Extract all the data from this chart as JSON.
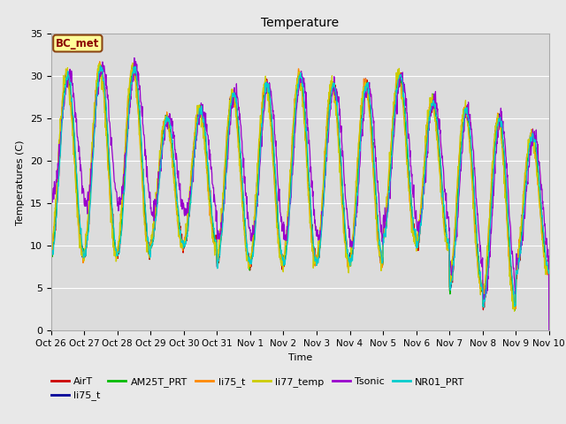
{
  "title": "Temperature",
  "xlabel": "Time",
  "ylabel": "Temperatures (C)",
  "ylim": [
    0,
    35
  ],
  "xlim": [
    0,
    15
  ],
  "fig_bg": "#e8e8e8",
  "plot_bg": "#dcdcdc",
  "annotation_text": "BC_met",
  "annotation_bg": "#ffff99",
  "annotation_edge": "#8B4513",
  "annotation_text_color": "#8B0000",
  "series": [
    {
      "label": "AirT",
      "color": "#cc0000"
    },
    {
      "label": "li75_t",
      "color": "#000099"
    },
    {
      "label": "AM25T_PRT",
      "color": "#00bb00"
    },
    {
      "label": "li75_t",
      "color": "#ff8800"
    },
    {
      "label": "li77_temp",
      "color": "#cccc00"
    },
    {
      "label": "Tsonic",
      "color": "#9900cc"
    },
    {
      "label": "NR01_PRT",
      "color": "#00cccc"
    }
  ],
  "xtick_labels": [
    "Oct 26",
    "Oct 27",
    "Oct 28",
    "Oct 29",
    "Oct 30",
    "Oct 31",
    "Nov 1",
    "Nov 2",
    "Nov 3",
    "Nov 4",
    "Nov 5",
    "Nov 6",
    "Nov 7",
    "Nov 8",
    "Nov 9",
    "Nov 10"
  ],
  "xtick_positions": [
    0,
    1,
    2,
    3,
    4,
    5,
    6,
    7,
    8,
    9,
    10,
    11,
    12,
    13,
    14,
    15
  ],
  "ytick_labels": [
    "0",
    "5",
    "10",
    "15",
    "20",
    "25",
    "30",
    "35"
  ],
  "ytick_positions": [
    0,
    5,
    10,
    15,
    20,
    25,
    30,
    35
  ],
  "day_params": [
    [
      9,
      30
    ],
    [
      9,
      31
    ],
    [
      9,
      31
    ],
    [
      10,
      25
    ],
    [
      10,
      26
    ],
    [
      8,
      28
    ],
    [
      8,
      29
    ],
    [
      8,
      30
    ],
    [
      8,
      29
    ],
    [
      8,
      29
    ],
    [
      11,
      30
    ],
    [
      10,
      27
    ],
    [
      5,
      26
    ],
    [
      3,
      25
    ],
    [
      7,
      23
    ]
  ],
  "tsonic_night_offsets": [
    7,
    6,
    6,
    4,
    4,
    3,
    3,
    3,
    3,
    2,
    2,
    2,
    2,
    1,
    1
  ]
}
